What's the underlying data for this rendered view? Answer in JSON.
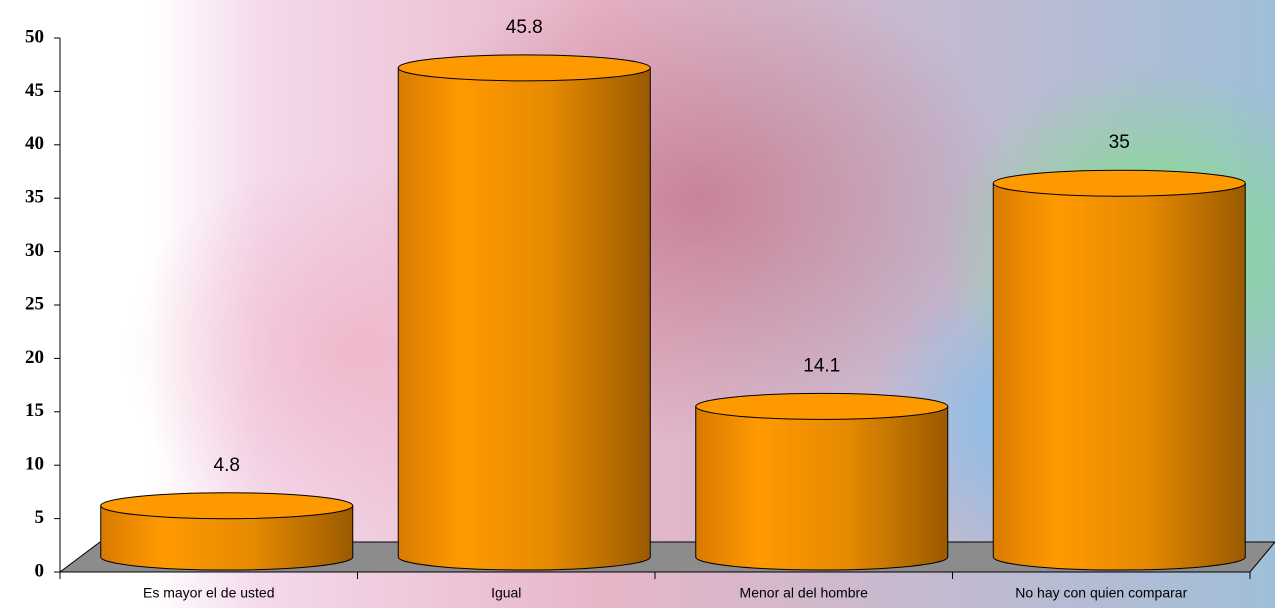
{
  "chart_data": {
    "type": "bar",
    "categories": [
      "Es mayor el de usted",
      "Igual",
      "Menor al del hombre",
      "No hay con quien comparar"
    ],
    "values": [
      4.8,
      45.8,
      14.1,
      35
    ],
    "color": "#ff9900",
    "ylim": [
      0,
      50
    ],
    "yticks": [
      0,
      5,
      10,
      15,
      20,
      25,
      30,
      35,
      40,
      45,
      50
    ]
  }
}
